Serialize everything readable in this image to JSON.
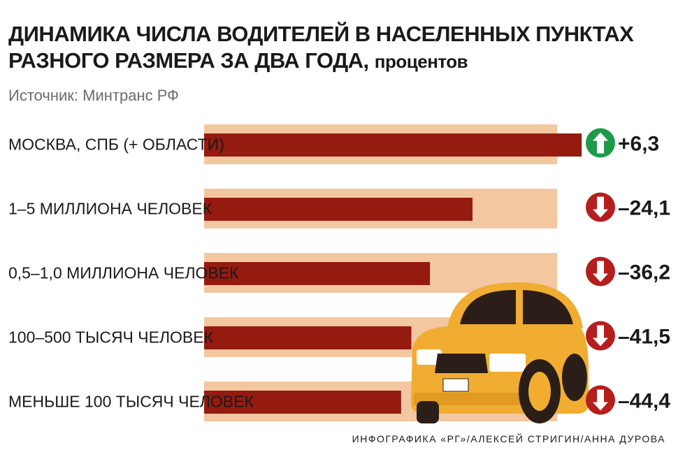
{
  "chart_data": {
    "type": "bar",
    "title": "ДИНАМИКА ЧИСЛА ВОДИТЕЛЕЙ В НАСЕЛЕННЫХ ПУНКТАХ РАЗНОГО РАЗМЕРА ЗА ДВА ГОДА,",
    "unit": "процентов",
    "source": "Источник: Минтранс РФ",
    "categories": [
      "МОСКВА, СПБ (+ ОБЛАСТИ)",
      "1–5 МИЛЛИОНА ЧЕЛОВЕК",
      "0,5–1,0 МИЛЛИОНА ЧЕЛОВЕК",
      "100–500 ТЫСЯЧ ЧЕЛОВЕК",
      "МЕНЬШЕ 100 ТЫСЯЧ ЧЕЛОВЕК"
    ],
    "values": [
      6.3,
      -24.1,
      -36.2,
      -41.5,
      -44.4
    ],
    "value_labels": [
      "+6,3",
      "–24,1",
      "–36,2",
      "–41,5",
      "–44,4"
    ],
    "credit": "ИНФОГРАФИКА «РГ»/АЛЕКСЕЙ СТРИГИН/АННА ДУРОВА",
    "colors": {
      "bar": "#951a10",
      "track": "#f3c7a0",
      "up": "#1e9a4a",
      "down": "#b51e1c",
      "car_body": "#f0ad31",
      "car_dark": "#2b1e18"
    }
  }
}
